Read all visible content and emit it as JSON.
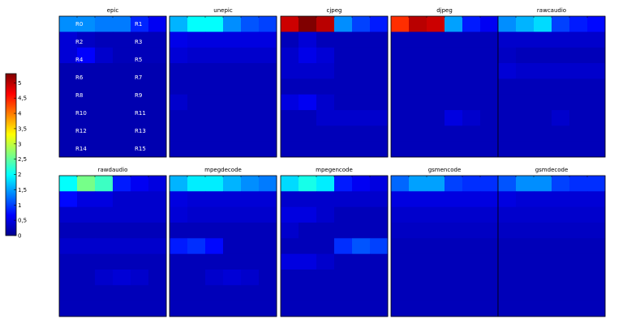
{
  "chart_data": {
    "type": "heatmap",
    "colormap": "jet",
    "value_range": [
      0,
      5.3
    ],
    "colorbar": {
      "ticks": [
        0,
        0.5,
        1,
        1.5,
        2,
        2.5,
        3,
        3.5,
        4,
        4.5,
        5
      ],
      "tick_labels": [
        "0",
        "0,5",
        "1",
        "1,5",
        "2",
        "2,5",
        "3",
        "3,5",
        "4",
        "4,5",
        "5"
      ]
    },
    "region_labels": [
      [
        "R0",
        "R1"
      ],
      [
        "R2",
        "R3"
      ],
      [
        "R4",
        "R5"
      ],
      [
        "R6",
        "R7"
      ],
      [
        "R8",
        "R9"
      ],
      [
        "R10",
        "R11"
      ],
      [
        "R12",
        "R13"
      ],
      [
        "R14",
        "R15"
      ]
    ],
    "panels": [
      {
        "title": "epic",
        "values": [
          [
            1.4,
            1.4,
            1.3,
            1.3,
            0.85,
            0.6
          ],
          [
            0.45,
            0.35,
            0.3,
            0.3,
            0.3,
            0.3
          ],
          [
            0.45,
            0.65,
            0.4,
            0.3,
            0.3,
            0.3
          ],
          [
            0.25,
            0.25,
            0.25,
            0.25,
            0.25,
            0.25
          ],
          [
            0.25,
            0.25,
            0.25,
            0.25,
            0.25,
            0.25
          ],
          [
            0.25,
            0.25,
            0.25,
            0.25,
            0.25,
            0.25
          ],
          [
            0.25,
            0.25,
            0.25,
            0.25,
            0.25,
            0.25
          ],
          [
            0.25,
            0.25,
            0.25,
            0.25,
            0.25,
            0.25
          ],
          [
            0.25,
            0.25,
            0.25,
            0.25,
            0.25,
            0.25
          ]
        ]
      },
      {
        "title": "unepic",
        "values": [
          [
            1.6,
            2.0,
            2.0,
            1.4,
            1.1,
            1.0
          ],
          [
            0.55,
            0.5,
            0.5,
            0.5,
            0.5,
            0.5
          ],
          [
            0.45,
            0.4,
            0.4,
            0.4,
            0.4,
            0.4
          ],
          [
            0.3,
            0.3,
            0.3,
            0.3,
            0.3,
            0.3
          ],
          [
            0.3,
            0.3,
            0.3,
            0.3,
            0.3,
            0.3
          ],
          [
            0.4,
            0.3,
            0.3,
            0.3,
            0.3,
            0.3
          ],
          [
            0.3,
            0.3,
            0.3,
            0.3,
            0.3,
            0.3
          ],
          [
            0.3,
            0.3,
            0.3,
            0.3,
            0.3,
            0.3
          ],
          [
            0.3,
            0.3,
            0.3,
            0.3,
            0.3,
            0.3
          ]
        ]
      },
      {
        "title": "cjpeg",
        "values": [
          [
            4.9,
            5.3,
            5.0,
            1.4,
            1.0,
            0.8
          ],
          [
            0.3,
            0.45,
            0.3,
            0.3,
            0.3,
            0.3
          ],
          [
            0.4,
            0.55,
            0.45,
            0.3,
            0.3,
            0.3
          ],
          [
            0.4,
            0.4,
            0.4,
            0.3,
            0.3,
            0.3
          ],
          [
            0.3,
            0.3,
            0.3,
            0.3,
            0.3,
            0.3
          ],
          [
            0.5,
            0.6,
            0.4,
            0.3,
            0.3,
            0.3
          ],
          [
            0.3,
            0.3,
            0.4,
            0.4,
            0.4,
            0.4
          ],
          [
            0.3,
            0.3,
            0.3,
            0.3,
            0.3,
            0.3
          ],
          [
            0.3,
            0.3,
            0.3,
            0.3,
            0.3,
            0.3
          ]
        ]
      },
      {
        "title": "djpeg",
        "values": [
          [
            4.4,
            5.0,
            4.9,
            1.5,
            0.8,
            0.6
          ],
          [
            0.3,
            0.3,
            0.3,
            0.3,
            0.3,
            0.3
          ],
          [
            0.3,
            0.3,
            0.3,
            0.3,
            0.3,
            0.3
          ],
          [
            0.3,
            0.3,
            0.3,
            0.3,
            0.3,
            0.3
          ],
          [
            0.3,
            0.3,
            0.3,
            0.3,
            0.3,
            0.3
          ],
          [
            0.3,
            0.3,
            0.3,
            0.3,
            0.3,
            0.3
          ],
          [
            0.3,
            0.3,
            0.3,
            0.5,
            0.4,
            0.3
          ],
          [
            0.3,
            0.3,
            0.3,
            0.3,
            0.3,
            0.3
          ],
          [
            0.3,
            0.3,
            0.3,
            0.3,
            0.3,
            0.3
          ]
        ]
      },
      {
        "title": "rawcaudio",
        "values": [
          [
            1.4,
            1.6,
            1.8,
            1.0,
            0.8,
            0.7
          ],
          [
            0.4,
            0.4,
            0.4,
            0.4,
            0.4,
            0.4
          ],
          [
            0.35,
            0.3,
            0.3,
            0.3,
            0.3,
            0.3
          ],
          [
            0.45,
            0.4,
            0.4,
            0.4,
            0.4,
            0.4
          ],
          [
            0.3,
            0.3,
            0.3,
            0.3,
            0.3,
            0.3
          ],
          [
            0.3,
            0.3,
            0.3,
            0.3,
            0.3,
            0.3
          ],
          [
            0.3,
            0.3,
            0.3,
            0.4,
            0.3,
            0.3
          ],
          [
            0.3,
            0.3,
            0.3,
            0.3,
            0.3,
            0.3
          ],
          [
            0.3,
            0.3,
            0.3,
            0.3,
            0.3,
            0.3
          ]
        ]
      },
      {
        "title": "rawdaudio",
        "values": [
          [
            2.0,
            2.6,
            2.3,
            0.8,
            0.6,
            0.5
          ],
          [
            0.7,
            0.5,
            0.5,
            0.4,
            0.4,
            0.4
          ],
          [
            0.4,
            0.4,
            0.4,
            0.4,
            0.4,
            0.4
          ],
          [
            0.3,
            0.3,
            0.3,
            0.3,
            0.3,
            0.3
          ],
          [
            0.4,
            0.4,
            0.4,
            0.4,
            0.4,
            0.4
          ],
          [
            0.3,
            0.3,
            0.3,
            0.3,
            0.3,
            0.3
          ],
          [
            0.3,
            0.3,
            0.4,
            0.45,
            0.4,
            0.3
          ],
          [
            0.3,
            0.3,
            0.3,
            0.3,
            0.3,
            0.3
          ],
          [
            0.3,
            0.3,
            0.3,
            0.3,
            0.3,
            0.3
          ]
        ]
      },
      {
        "title": "mpegdecode",
        "values": [
          [
            1.6,
            1.9,
            1.9,
            1.6,
            1.4,
            1.3
          ],
          [
            0.5,
            0.45,
            0.45,
            0.45,
            0.45,
            0.45
          ],
          [
            0.45,
            0.4,
            0.4,
            0.4,
            0.4,
            0.4
          ],
          [
            0.3,
            0.3,
            0.3,
            0.3,
            0.3,
            0.3
          ],
          [
            0.8,
            0.9,
            0.7,
            0.3,
            0.3,
            0.3
          ],
          [
            0.3,
            0.3,
            0.3,
            0.3,
            0.3,
            0.3
          ],
          [
            0.3,
            0.3,
            0.4,
            0.45,
            0.4,
            0.3
          ],
          [
            0.3,
            0.3,
            0.3,
            0.3,
            0.3,
            0.3
          ],
          [
            0.3,
            0.3,
            0.3,
            0.3,
            0.3,
            0.3
          ]
        ]
      },
      {
        "title": "mpegencode",
        "values": [
          [
            1.8,
            2.1,
            1.9,
            0.8,
            0.6,
            0.5
          ],
          [
            0.4,
            0.4,
            0.4,
            0.4,
            0.4,
            0.4
          ],
          [
            0.5,
            0.5,
            0.4,
            0.3,
            0.3,
            0.3
          ],
          [
            0.4,
            0.3,
            0.3,
            0.3,
            0.3,
            0.3
          ],
          [
            0.3,
            0.3,
            0.3,
            0.9,
            1.1,
            1.0
          ],
          [
            0.5,
            0.5,
            0.4,
            0.3,
            0.3,
            0.3
          ],
          [
            0.3,
            0.3,
            0.3,
            0.3,
            0.3,
            0.3
          ],
          [
            0.3,
            0.3,
            0.3,
            0.3,
            0.3,
            0.3
          ],
          [
            0.3,
            0.3,
            0.3,
            0.3,
            0.3,
            0.3
          ]
        ]
      },
      {
        "title": "gsmencode",
        "values": [
          [
            1.2,
            1.5,
            1.5,
            1.0,
            0.9,
            0.9
          ],
          [
            0.5,
            0.5,
            0.5,
            0.5,
            0.5,
            0.5
          ],
          [
            0.4,
            0.4,
            0.4,
            0.4,
            0.4,
            0.4
          ],
          [
            0.35,
            0.35,
            0.35,
            0.35,
            0.35,
            0.35
          ],
          [
            0.3,
            0.3,
            0.3,
            0.3,
            0.3,
            0.3
          ],
          [
            0.3,
            0.3,
            0.3,
            0.3,
            0.3,
            0.3
          ],
          [
            0.3,
            0.3,
            0.3,
            0.3,
            0.3,
            0.3
          ],
          [
            0.3,
            0.3,
            0.3,
            0.3,
            0.3,
            0.3
          ],
          [
            0.3,
            0.3,
            0.3,
            0.3,
            0.3,
            0.3
          ]
        ]
      },
      {
        "title": "gsmdecode",
        "values": [
          [
            1.1,
            1.4,
            1.4,
            1.0,
            0.9,
            0.9
          ],
          [
            0.5,
            0.45,
            0.45,
            0.45,
            0.45,
            0.45
          ],
          [
            0.4,
            0.4,
            0.4,
            0.4,
            0.4,
            0.4
          ],
          [
            0.35,
            0.35,
            0.35,
            0.35,
            0.35,
            0.35
          ],
          [
            0.3,
            0.3,
            0.3,
            0.3,
            0.3,
            0.3
          ],
          [
            0.3,
            0.3,
            0.3,
            0.3,
            0.3,
            0.3
          ],
          [
            0.3,
            0.3,
            0.3,
            0.3,
            0.3,
            0.3
          ],
          [
            0.3,
            0.3,
            0.3,
            0.3,
            0.3,
            0.3
          ],
          [
            0.3,
            0.3,
            0.3,
            0.3,
            0.3,
            0.3
          ]
        ]
      }
    ]
  }
}
